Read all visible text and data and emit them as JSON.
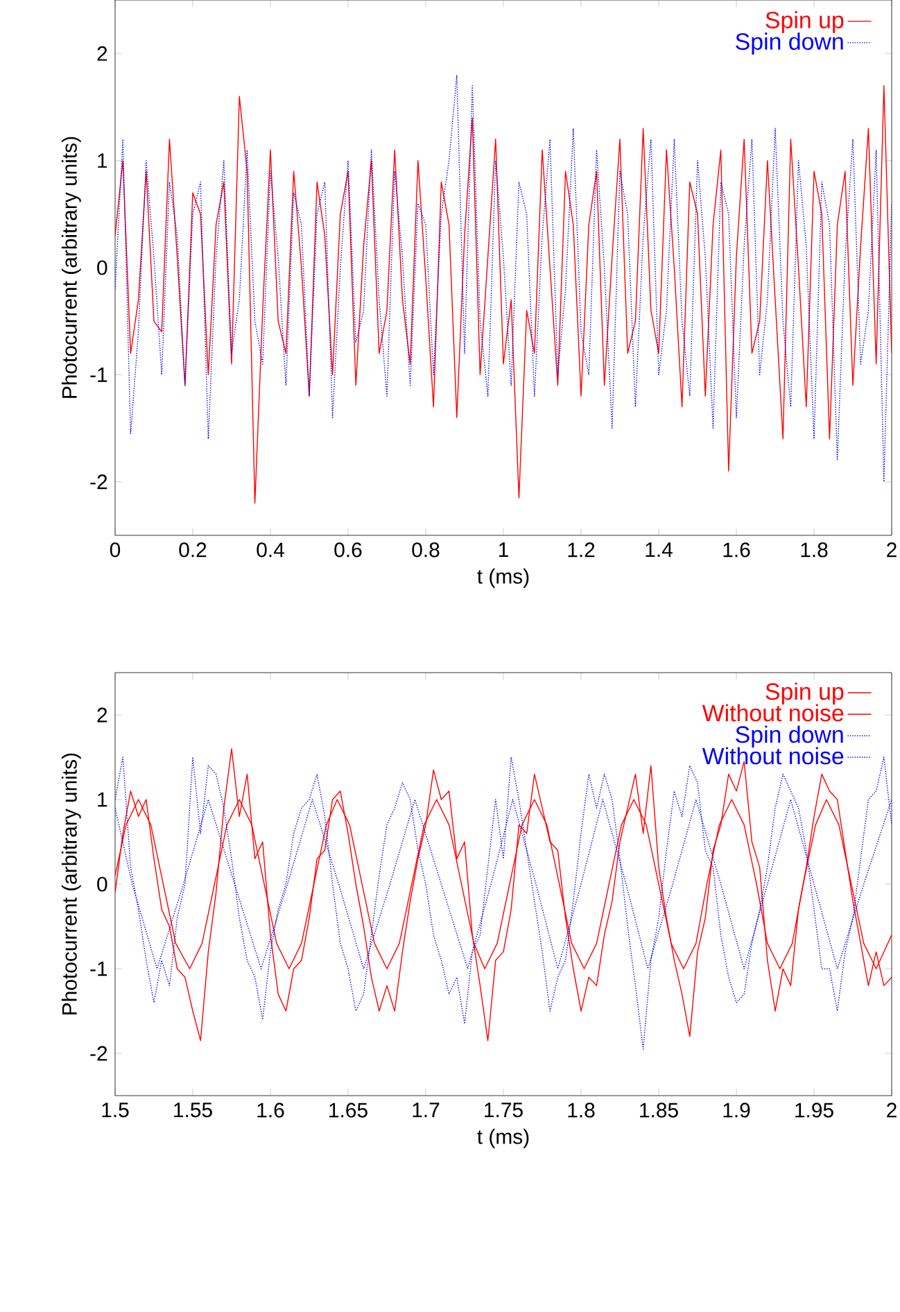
{
  "chart_data": [
    {
      "type": "line",
      "xlabel": "t (ms)",
      "ylabel": "Photocurrent (arbitrary units)",
      "xlim": [
        0,
        2
      ],
      "ylim": [
        -2.5,
        2.5
      ],
      "xticks": [
        0,
        0.2,
        0.4,
        0.6,
        0.8,
        1,
        1.2,
        1.4,
        1.6,
        1.8,
        2
      ],
      "yticks": [
        -2,
        -1,
        0,
        1,
        2
      ],
      "legend": "top right",
      "marker": "none",
      "series": [
        {
          "name": "Spin up",
          "color": "#ff0000",
          "line_style": "solid",
          "x": [
            0,
            0.02,
            0.04,
            0.06,
            0.08,
            0.1,
            0.12,
            0.14,
            0.16,
            0.18,
            0.2,
            0.22,
            0.24,
            0.26,
            0.28,
            0.3,
            0.32,
            0.34,
            0.36,
            0.38,
            0.4,
            0.42,
            0.44,
            0.46,
            0.48,
            0.5,
            0.52,
            0.54,
            0.56,
            0.58,
            0.6,
            0.62,
            0.64,
            0.66,
            0.68,
            0.7,
            0.72,
            0.74,
            0.76,
            0.78,
            0.8,
            0.82,
            0.84,
            0.86,
            0.88,
            0.9,
            0.92,
            0.94,
            0.96,
            0.98,
            1,
            1.02,
            1.04,
            1.06,
            1.08,
            1.1,
            1.12,
            1.14,
            1.16,
            1.18,
            1.2,
            1.22,
            1.24,
            1.26,
            1.28,
            1.3,
            1.32,
            1.34,
            1.36,
            1.38,
            1.4,
            1.42,
            1.44,
            1.46,
            1.48,
            1.5,
            1.52,
            1.54,
            1.56,
            1.58,
            1.6,
            1.62,
            1.64,
            1.66,
            1.68,
            1.7,
            1.72,
            1.74,
            1.76,
            1.78,
            1.8,
            1.82,
            1.84,
            1.86,
            1.88,
            1.9,
            1.92,
            1.94,
            1.96,
            1.98,
            2
          ],
          "values": [
            0.3,
            1.0,
            -0.8,
            -0.3,
            0.9,
            -0.5,
            -0.6,
            1.2,
            0.1,
            -1.1,
            0.7,
            0.5,
            -1.0,
            0.4,
            0.8,
            -0.9,
            1.6,
            0.9,
            -2.2,
            -0.4,
            1.1,
            -0.5,
            -0.8,
            0.9,
            0.0,
            -1.2,
            0.8,
            0.3,
            -1.0,
            0.5,
            0.9,
            -1.1,
            0.2,
            1.0,
            -0.8,
            -0.4,
            1.1,
            -0.3,
            -0.9,
            1.0,
            -0.1,
            -1.3,
            0.8,
            0.4,
            -1.4,
            0.3,
            1.4,
            -1.0,
            0.1,
            1.2,
            -0.9,
            -0.3,
            -2.15,
            -0.4,
            -0.8,
            1.1,
            0.0,
            -1.1,
            0.9,
            0.4,
            -1.2,
            0.4,
            0.9,
            -1.1,
            0.1,
            1.2,
            -0.8,
            -0.5,
            1.3,
            -0.4,
            -0.8,
            1.1,
            0.0,
            -1.3,
            0.8,
            0.5,
            -1.2,
            0.4,
            1.1,
            -1.9,
            0.1,
            1.2,
            -0.8,
            -0.5,
            1.0,
            -0.3,
            -1.6,
            1.2,
            0.0,
            -1.3,
            0.9,
            0.5,
            -1.6,
            0.4,
            0.9,
            -1.1,
            0.2,
            1.3,
            -0.9,
            1.7,
            -0.8
          ]
        },
        {
          "name": "Spin down",
          "color": "#0000ff",
          "line_style": "dotted",
          "x": [
            0,
            0.02,
            0.04,
            0.06,
            0.08,
            0.1,
            0.12,
            0.14,
            0.16,
            0.18,
            0.2,
            0.22,
            0.24,
            0.26,
            0.28,
            0.3,
            0.32,
            0.34,
            0.36,
            0.38,
            0.4,
            0.42,
            0.44,
            0.46,
            0.48,
            0.5,
            0.52,
            0.54,
            0.56,
            0.58,
            0.6,
            0.62,
            0.64,
            0.66,
            0.68,
            0.7,
            0.72,
            0.74,
            0.76,
            0.78,
            0.8,
            0.82,
            0.84,
            0.86,
            0.88,
            0.9,
            0.92,
            0.94,
            0.96,
            0.98,
            1,
            1.02,
            1.04,
            1.06,
            1.08,
            1.1,
            1.12,
            1.14,
            1.16,
            1.18,
            1.2,
            1.22,
            1.24,
            1.26,
            1.28,
            1.3,
            1.32,
            1.34,
            1.36,
            1.38,
            1.4,
            1.42,
            1.44,
            1.46,
            1.48,
            1.5,
            1.52,
            1.54,
            1.56,
            1.58,
            1.6,
            1.62,
            1.64,
            1.66,
            1.68,
            1.7,
            1.72,
            1.74,
            1.76,
            1.78,
            1.8,
            1.82,
            1.84,
            1.86,
            1.88,
            1.9,
            1.92,
            1.94,
            1.96,
            1.98,
            2
          ],
          "values": [
            -0.2,
            1.2,
            -1.55,
            -0.6,
            1.0,
            0.1,
            -1.0,
            0.8,
            0.3,
            -1.1,
            0.5,
            0.8,
            -1.6,
            0.1,
            1.0,
            -0.8,
            -0.3,
            1.1,
            -0.5,
            -0.9,
            0.9,
            0.1,
            -1.1,
            0.7,
            0.4,
            -1.2,
            0.5,
            0.8,
            -1.4,
            0.0,
            1.0,
            -0.7,
            -0.4,
            1.1,
            -0.3,
            -1.2,
            0.9,
            0.1,
            -1.1,
            0.6,
            0.4,
            -1.0,
            0.5,
            1.0,
            1.8,
            -0.8,
            1.7,
            -0.5,
            -1.2,
            1.0,
            0.1,
            -1.1,
            0.8,
            0.5,
            -1.2,
            0.3,
            1.2,
            -1.0,
            -0.2,
            1.3,
            -0.6,
            -1.0,
            1.1,
            0.0,
            -1.5,
            0.9,
            0.5,
            -1.3,
            0.3,
            1.2,
            -1.0,
            -0.4,
            1.2,
            -0.5,
            -1.2,
            1.0,
            0.1,
            -1.5,
            0.8,
            0.5,
            -1.4,
            0.2,
            1.2,
            -1.0,
            -0.3,
            1.3,
            -0.5,
            -1.3,
            1.0,
            0.2,
            -1.6,
            0.8,
            0.4,
            -1.8,
            0.1,
            1.2,
            -0.9,
            -0.4,
            1.1,
            -2.0,
            0.6
          ]
        }
      ]
    },
    {
      "type": "line",
      "xlabel": "t (ms)",
      "ylabel": "Photocurrent (arbitrary units)",
      "xlim": [
        1.5,
        2
      ],
      "ylim": [
        -2.5,
        2.5
      ],
      "xticks": [
        1.5,
        1.55,
        1.6,
        1.65,
        1.7,
        1.75,
        1.8,
        1.85,
        1.9,
        1.95,
        2
      ],
      "yticks": [
        -2,
        -1,
        0,
        1,
        2
      ],
      "legend": "top right",
      "marker": "none",
      "series": [
        {
          "name": "Spin up",
          "color": "#ff0000",
          "line_style": "solid",
          "x": [
            1.5,
            1.505,
            1.51,
            1.515,
            1.52,
            1.525,
            1.53,
            1.535,
            1.54,
            1.545,
            1.55,
            1.555,
            1.56,
            1.565,
            1.57,
            1.575,
            1.58,
            1.585,
            1.59,
            1.595,
            1.6,
            1.605,
            1.61,
            1.615,
            1.62,
            1.625,
            1.63,
            1.635,
            1.64,
            1.645,
            1.65,
            1.655,
            1.66,
            1.665,
            1.67,
            1.675,
            1.68,
            1.685,
            1.69,
            1.695,
            1.7,
            1.705,
            1.71,
            1.715,
            1.72,
            1.725,
            1.73,
            1.735,
            1.74,
            1.745,
            1.75,
            1.755,
            1.76,
            1.765,
            1.77,
            1.775,
            1.78,
            1.785,
            1.79,
            1.795,
            1.8,
            1.805,
            1.81,
            1.815,
            1.82,
            1.825,
            1.83,
            1.835,
            1.84,
            1.845,
            1.85,
            1.855,
            1.86,
            1.865,
            1.87,
            1.875,
            1.88,
            1.885,
            1.89,
            1.895,
            1.9,
            1.905,
            1.91,
            1.915,
            1.92,
            1.925,
            1.93,
            1.935,
            1.94,
            1.945,
            1.95,
            1.955,
            1.96,
            1.965,
            1.97,
            1.975,
            1.98,
            1.985,
            1.99,
            1.995,
            2
          ],
          "values": [
            -0.1,
            0.6,
            1.1,
            0.8,
            1.0,
            0.3,
            -0.3,
            -0.5,
            -1.0,
            -1.1,
            -1.5,
            -1.85,
            -0.8,
            -0.1,
            0.9,
            1.6,
            0.8,
            1.3,
            0.3,
            0.5,
            -0.6,
            -1.3,
            -1.5,
            -1.0,
            -0.9,
            -0.4,
            0.3,
            0.4,
            1.0,
            1.1,
            0.6,
            0.0,
            -0.5,
            -1.1,
            -1.5,
            -1.2,
            -1.5,
            -0.8,
            -0.2,
            0.3,
            0.7,
            1.35,
            1.0,
            1.1,
            0.3,
            0.5,
            -0.6,
            -1.2,
            -1.85,
            -0.9,
            -0.8,
            -0.3,
            0.7,
            0.6,
            1.3,
            0.9,
            0.5,
            0.4,
            -0.4,
            -1.0,
            -1.5,
            -1.1,
            -1.2,
            -0.6,
            -0.2,
            0.5,
            0.9,
            1.3,
            0.6,
            1.4,
            0.2,
            -0.4,
            -0.9,
            -1.3,
            -1.8,
            -0.8,
            -0.4,
            0.4,
            0.7,
            1.3,
            1.1,
            1.45,
            0.5,
            0.2,
            -0.9,
            -1.5,
            -1.0,
            -1.2,
            -0.3,
            0.2,
            0.8,
            1.3,
            1.1,
            1.0,
            0.4,
            -0.2,
            -0.7,
            -1.2,
            -0.8,
            -1.2,
            -1.1
          ]
        },
        {
          "name": "Without noise",
          "color": "#ff0000",
          "line_style": "solid",
          "x": [
            1.5,
            1.507,
            1.515,
            1.523,
            1.531,
            1.539,
            1.548,
            1.556,
            1.564,
            1.572,
            1.58,
            1.588,
            1.596,
            1.604,
            1.612,
            1.62,
            1.628,
            1.636,
            1.643,
            1.651,
            1.659,
            1.667,
            1.675,
            1.683,
            1.691,
            1.699,
            1.707,
            1.715,
            1.723,
            1.731,
            1.738,
            1.746,
            1.754,
            1.762,
            1.77,
            1.778,
            1.786,
            1.794,
            1.802,
            1.81,
            1.818,
            1.826,
            1.834,
            1.842,
            1.85,
            1.858,
            1.866,
            1.874,
            1.881,
            1.889,
            1.897,
            1.905,
            1.913,
            1.92,
            1.928,
            1.936,
            1.943,
            1.951,
            1.958,
            1.966,
            1.974,
            1.982,
            1.99,
            2
          ],
          "values": [
            0.1,
            0.7,
            1.0,
            0.7,
            0.0,
            -0.7,
            -1.0,
            -0.7,
            0.0,
            0.7,
            1.0,
            0.7,
            0.0,
            -0.7,
            -1.0,
            -0.7,
            0.0,
            0.7,
            1.0,
            0.7,
            0.0,
            -0.7,
            -1.0,
            -0.7,
            0.0,
            0.7,
            1.0,
            0.7,
            0.0,
            -0.7,
            -1.0,
            -0.7,
            0.0,
            0.7,
            1.0,
            0.7,
            0.0,
            -0.7,
            -1.0,
            -0.7,
            0.0,
            0.7,
            1.0,
            0.7,
            0.0,
            -0.7,
            -1.0,
            -0.7,
            0.0,
            0.7,
            1.0,
            0.7,
            0.0,
            -0.7,
            -1.0,
            -0.7,
            0.0,
            0.7,
            1.0,
            0.7,
            0.0,
            -0.7,
            -1.0,
            -0.6
          ]
        },
        {
          "name": "Spin down",
          "color": "#0000ff",
          "line_style": "dotted",
          "x": [
            1.5,
            1.505,
            1.51,
            1.515,
            1.52,
            1.525,
            1.53,
            1.535,
            1.54,
            1.545,
            1.55,
            1.555,
            1.56,
            1.565,
            1.57,
            1.575,
            1.58,
            1.585,
            1.59,
            1.595,
            1.6,
            1.605,
            1.61,
            1.615,
            1.62,
            1.625,
            1.63,
            1.635,
            1.64,
            1.645,
            1.65,
            1.655,
            1.66,
            1.665,
            1.67,
            1.675,
            1.68,
            1.685,
            1.69,
            1.695,
            1.7,
            1.705,
            1.71,
            1.715,
            1.72,
            1.725,
            1.73,
            1.735,
            1.74,
            1.745,
            1.75,
            1.755,
            1.76,
            1.765,
            1.77,
            1.775,
            1.78,
            1.785,
            1.79,
            1.795,
            1.8,
            1.805,
            1.81,
            1.815,
            1.82,
            1.825,
            1.83,
            1.835,
            1.84,
            1.845,
            1.85,
            1.855,
            1.86,
            1.865,
            1.87,
            1.875,
            1.88,
            1.885,
            1.89,
            1.895,
            1.9,
            1.905,
            1.91,
            1.915,
            1.92,
            1.925,
            1.93,
            1.935,
            1.94,
            1.945,
            1.95,
            1.955,
            1.96,
            1.965,
            1.97,
            1.975,
            1.98,
            1.985,
            1.99,
            1.995,
            2
          ],
          "values": [
            1.0,
            1.5,
            0.2,
            -0.3,
            -0.9,
            -1.4,
            -0.9,
            -1.2,
            -0.4,
            0.0,
            1.5,
            0.6,
            1.4,
            1.3,
            0.9,
            0.3,
            -0.4,
            -0.9,
            -1.1,
            -1.6,
            -0.8,
            -0.3,
            0.0,
            0.6,
            0.9,
            1.0,
            1.3,
            0.8,
            0.0,
            -0.7,
            -1.0,
            -1.5,
            -1.3,
            -0.6,
            0.1,
            0.7,
            0.9,
            1.2,
            1.0,
            0.4,
            0.0,
            -0.6,
            -0.9,
            -1.3,
            -1.1,
            -1.65,
            -0.8,
            -0.6,
            0.2,
            1.0,
            0.3,
            1.5,
            1.0,
            0.4,
            -0.2,
            -0.8,
            -1.5,
            -1.1,
            -0.9,
            -0.2,
            0.6,
            1.3,
            0.9,
            1.3,
            1.0,
            0.3,
            -0.5,
            -1.2,
            -1.95,
            -0.9,
            -0.4,
            0.4,
            1.1,
            0.8,
            1.4,
            1.2,
            0.4,
            0.2,
            -0.6,
            -1.1,
            -1.4,
            -1.3,
            -0.7,
            -0.3,
            0.2,
            0.9,
            1.3,
            1.1,
            0.9,
            0.4,
            -0.3,
            -1.0,
            -1.0,
            -1.5,
            -0.8,
            -0.4,
            0.3,
            1.0,
            1.1,
            1.5,
            0.7
          ]
        },
        {
          "name": "Without noise",
          "color": "#0000ff",
          "line_style": "dotted",
          "x": [
            1.5,
            1.511,
            1.527,
            1.544,
            1.56,
            1.577,
            1.594,
            1.611,
            1.627,
            1.644,
            1.66,
            1.677,
            1.693,
            1.71,
            1.727,
            1.742,
            1.756,
            1.771,
            1.785,
            1.8,
            1.814,
            1.829,
            1.843,
            1.859,
            1.874,
            1.89,
            1.905,
            1.92,
            1.935,
            1.95,
            1.965,
            1.982,
            2
          ],
          "values": [
            0.9,
            0.0,
            -1.0,
            0.0,
            1.0,
            0.0,
            -1.0,
            0.0,
            1.0,
            0.0,
            -1.0,
            0.0,
            1.0,
            0.0,
            -1.0,
            0.0,
            1.0,
            0.0,
            -1.0,
            0.0,
            1.0,
            0.0,
            -1.0,
            0.0,
            1.0,
            0.0,
            -1.0,
            0.0,
            1.0,
            0.0,
            -1.0,
            0.0,
            1.0
          ]
        }
      ]
    }
  ]
}
